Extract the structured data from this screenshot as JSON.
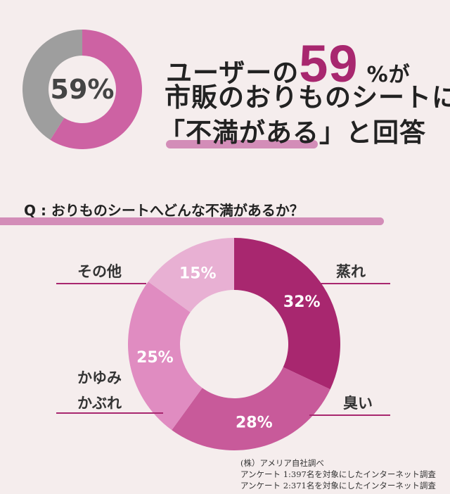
{
  "headline": {
    "line1_prefix": "ユーザーの",
    "line1_number": "59",
    "line1_suffix": "%が",
    "line2": "市販のおりものシートに",
    "line3_quote": "「不満がある」",
    "line3_suffix": "と回答"
  },
  "question": "Q : おりものシートへどんな不満があるか？",
  "footnote": {
    "source": "(株）アメリア自社調べ",
    "survey1": "アンケート 1:397名を対象にしたインターネット調査",
    "survey2": "アンケート 2:371名を対象にしたインターネット調査"
  },
  "chart_data": [
    {
      "type": "pie",
      "variant": "donut",
      "center_label": "59%",
      "slices": [
        {
          "label": "不満がある",
          "value": 59,
          "color": "#cd62a3"
        },
        {
          "label": "その他",
          "value": 41,
          "color": "#9e9e9e"
        }
      ]
    },
    {
      "type": "pie",
      "variant": "donut",
      "slices": [
        {
          "label": "蒸れ",
          "value": 32,
          "value_label": "32%",
          "color": "#a8276f"
        },
        {
          "label": "臭い",
          "value": 28,
          "value_label": "28%",
          "color": "#c85a9a"
        },
        {
          "label": "かゆみ かぶれ",
          "label_lines": [
            "かゆみ",
            "かぶれ"
          ],
          "value": 25,
          "value_label": "25%",
          "color": "#e08cc1"
        },
        {
          "label": "その他",
          "value": 15,
          "value_label": "15%",
          "color": "#e8b0d3"
        }
      ]
    }
  ],
  "colors": {
    "accent": "#a8276f",
    "background": "#f5eded",
    "underline": "#d38db8"
  }
}
